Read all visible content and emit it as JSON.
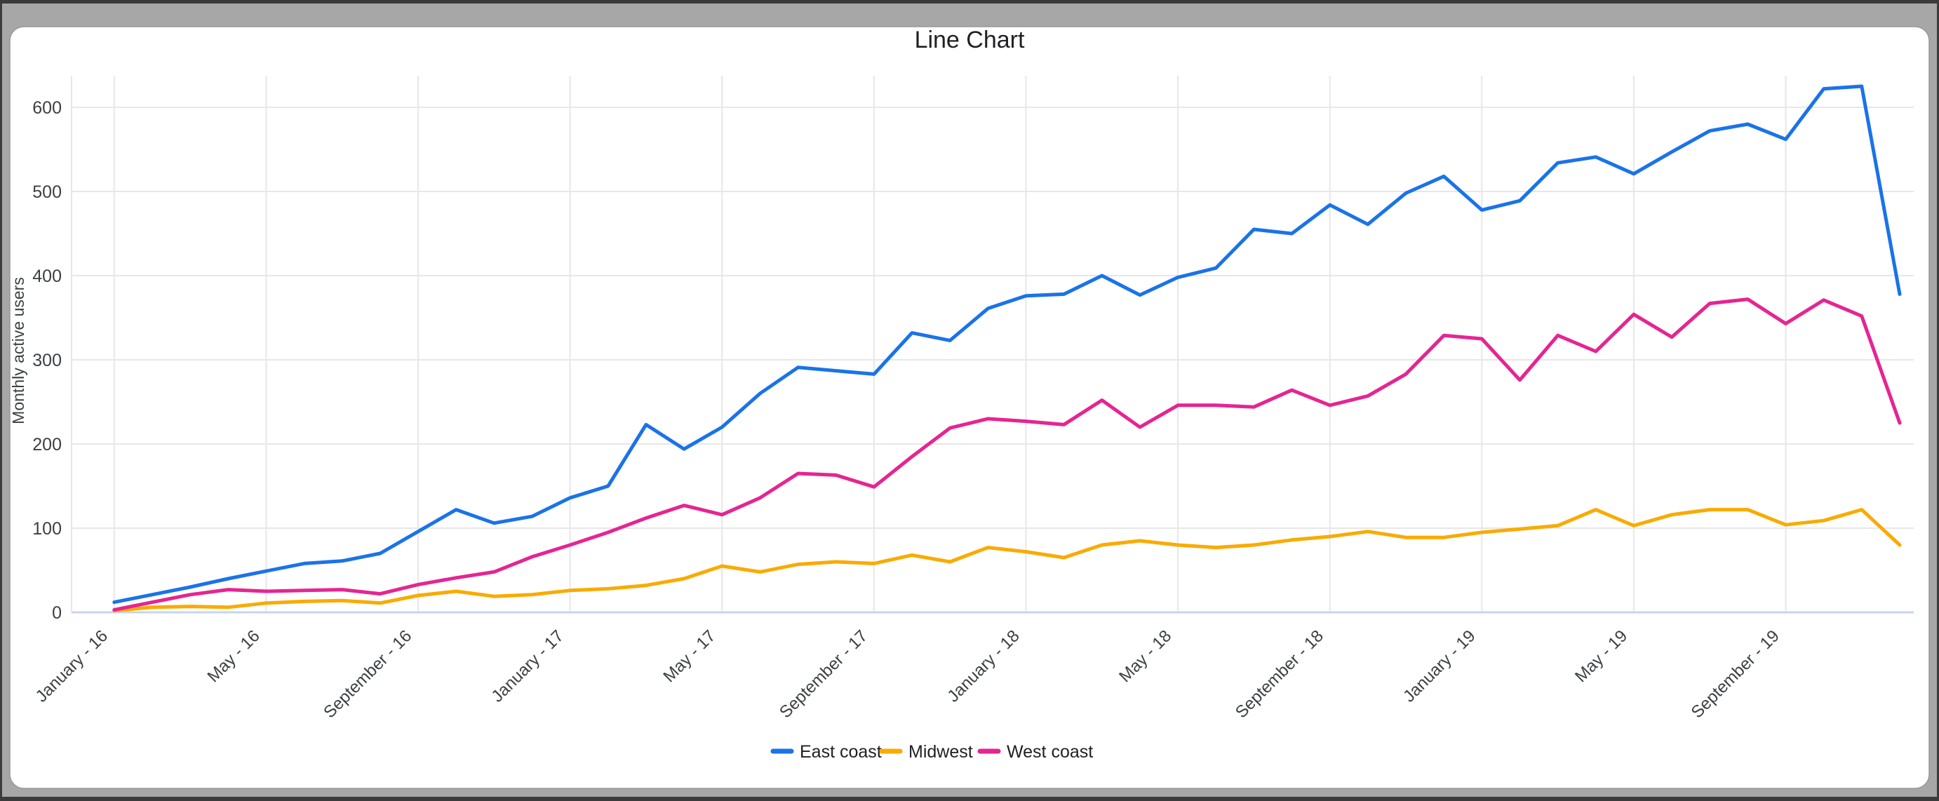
{
  "window": {
    "background_color": "#a7a7a7",
    "edge_color": "#3b3b3b",
    "card_color": "#ffffff"
  },
  "chart": {
    "title": "Line Chart",
    "y_axis_title": "Monthly active users",
    "y_ticks": [
      "0",
      "100",
      "200",
      "300",
      "400",
      "500",
      "600"
    ],
    "x_ticks": [
      "January - 16",
      "May - 16",
      "September - 16",
      "January - 17",
      "May - 17",
      "September - 17",
      "January - 18",
      "May - 18",
      "September - 18",
      "January - 19",
      "May - 19",
      "September - 19"
    ]
  },
  "legend": {
    "items": [
      {
        "label": "East coast",
        "color": "#1a73e8"
      },
      {
        "label": "Midwest",
        "color": "#f9ab00"
      },
      {
        "label": "West coast",
        "color": "#e52592"
      }
    ]
  },
  "chart_data": {
    "type": "line",
    "title": "Line Chart",
    "xlabel": "",
    "ylabel": "Monthly active users",
    "ylim": [
      0,
      650
    ],
    "grid": true,
    "legend_position": "bottom",
    "x_tick_labels": [
      "January - 16",
      "May - 16",
      "September - 16",
      "January - 17",
      "May - 17",
      "September - 17",
      "January - 18",
      "May - 18",
      "September - 18",
      "January - 19",
      "May - 19",
      "September - 19"
    ],
    "x": [
      "Jan 2016",
      "Feb 2016",
      "Mar 2016",
      "Apr 2016",
      "May 2016",
      "Jun 2016",
      "Jul 2016",
      "Aug 2016",
      "Sep 2016",
      "Oct 2016",
      "Nov 2016",
      "Dec 2016",
      "Jan 2017",
      "Feb 2017",
      "Mar 2017",
      "Apr 2017",
      "May 2017",
      "Jun 2017",
      "Jul 2017",
      "Aug 2017",
      "Sep 2017",
      "Oct 2017",
      "Nov 2017",
      "Dec 2017",
      "Jan 2018",
      "Feb 2018",
      "Mar 2018",
      "Apr 2018",
      "May 2018",
      "Jun 2018",
      "Jul 2018",
      "Aug 2018",
      "Sep 2018",
      "Oct 2018",
      "Nov 2018",
      "Dec 2018",
      "Jan 2019",
      "Feb 2019",
      "Mar 2019",
      "Apr 2019",
      "May 2019",
      "Jun 2019",
      "Jul 2019",
      "Aug 2019",
      "Sep 2019",
      "Oct 2019",
      "Nov 2019",
      "Dec 2019"
    ],
    "series": [
      {
        "name": "East coast",
        "color": "#1a73e8",
        "values": [
          12,
          21,
          30,
          40,
          49,
          58,
          61,
          70,
          96,
          122,
          106,
          114,
          136,
          150,
          223,
          194,
          220,
          260,
          291,
          287,
          283,
          332,
          323,
          361,
          376,
          378,
          400,
          377,
          398,
          409,
          455,
          450,
          484,
          461,
          498,
          518,
          478,
          489,
          534,
          541,
          521,
          547,
          572,
          580,
          562,
          622,
          625,
          378
        ]
      },
      {
        "name": "Midwest",
        "color": "#f9ab00",
        "values": [
          2,
          6,
          7,
          6,
          11,
          13,
          14,
          11,
          20,
          25,
          19,
          21,
          26,
          28,
          32,
          40,
          55,
          48,
          57,
          60,
          58,
          68,
          60,
          77,
          72,
          65,
          80,
          85,
          80,
          77,
          80,
          86,
          90,
          96,
          89,
          89,
          95,
          99,
          103,
          122,
          103,
          116,
          122,
          122,
          104,
          109,
          122,
          80
        ]
      },
      {
        "name": "West coast",
        "color": "#e52592",
        "values": [
          3,
          12,
          21,
          27,
          25,
          26,
          27,
          22,
          33,
          41,
          48,
          66,
          80,
          95,
          112,
          127,
          116,
          136,
          165,
          163,
          149,
          185,
          219,
          230,
          227,
          223,
          252,
          220,
          246,
          246,
          244,
          264,
          246,
          257,
          283,
          329,
          325,
          276,
          329,
          310,
          354,
          327,
          367,
          372,
          343,
          371,
          352,
          225
        ]
      }
    ]
  }
}
